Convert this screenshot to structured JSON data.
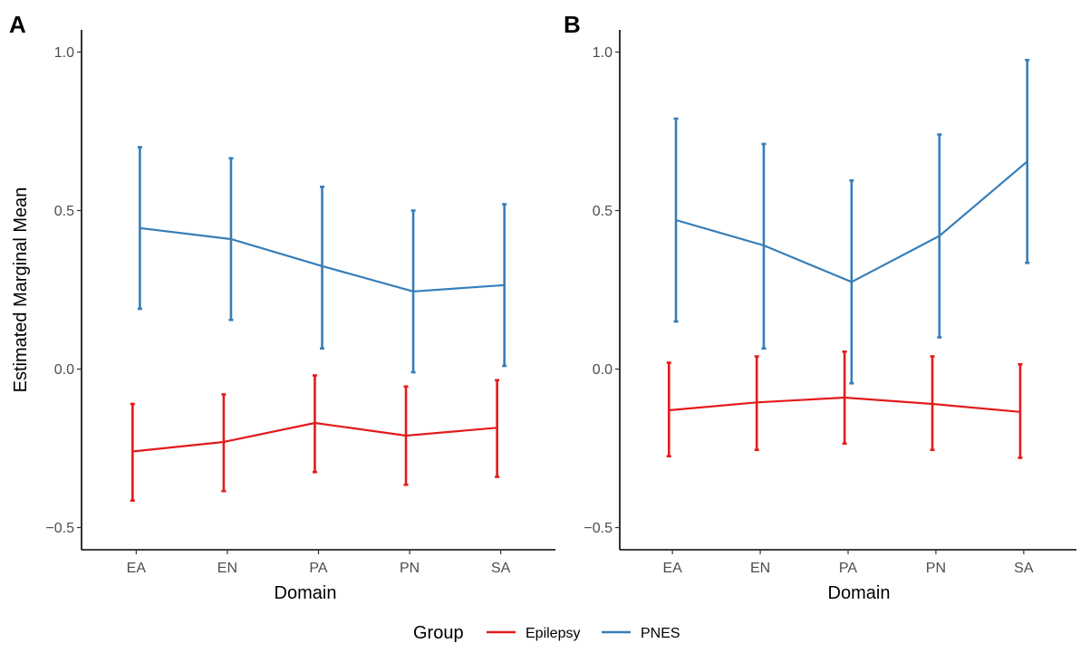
{
  "chart_data": [
    {
      "type": "line",
      "panel": "A",
      "categories": [
        "EA",
        "EN",
        "PA",
        "PN",
        "SA"
      ],
      "xlabel": "Domain",
      "ylabel": "Estimated Marginal Mean",
      "ylim": [
        -0.57,
        1.07
      ],
      "yticks": [
        -0.5,
        0.0,
        0.5,
        1.0
      ],
      "ytick_labels": [
        "−0.5",
        "0.0",
        "0.5",
        "1.0"
      ],
      "grid": false,
      "series": [
        {
          "name": "Epilepsy",
          "color": "#e41a1c",
          "values": [
            -0.26,
            -0.23,
            -0.17,
            -0.21,
            -0.185
          ],
          "lower": [
            -0.415,
            -0.385,
            -0.325,
            -0.365,
            -0.34
          ],
          "upper": [
            -0.11,
            -0.08,
            -0.02,
            -0.055,
            -0.035
          ]
        },
        {
          "name": "PNES",
          "color": "#377eb8",
          "values": [
            0.445,
            0.41,
            0.325,
            0.245,
            0.265
          ],
          "lower": [
            0.19,
            0.155,
            0.065,
            -0.01,
            0.01
          ],
          "upper": [
            0.7,
            0.665,
            0.575,
            0.5,
            0.52
          ]
        }
      ]
    },
    {
      "type": "line",
      "panel": "B",
      "categories": [
        "EA",
        "EN",
        "PA",
        "PN",
        "SA"
      ],
      "xlabel": "Domain",
      "ylabel": "",
      "ylim": [
        -0.57,
        1.07
      ],
      "yticks": [
        -0.5,
        0.0,
        0.5,
        1.0
      ],
      "ytick_labels": [
        "−0.5",
        "0.0",
        "0.5",
        "1.0"
      ],
      "grid": false,
      "series": [
        {
          "name": "Epilepsy",
          "color": "#e41a1c",
          "values": [
            -0.13,
            -0.105,
            -0.09,
            -0.11,
            -0.135
          ],
          "lower": [
            -0.275,
            -0.255,
            -0.235,
            -0.255,
            -0.28
          ],
          "upper": [
            0.02,
            0.04,
            0.055,
            0.04,
            0.015
          ]
        },
        {
          "name": "PNES",
          "color": "#377eb8",
          "values": [
            0.47,
            0.39,
            0.275,
            0.42,
            0.655
          ],
          "lower": [
            0.15,
            0.065,
            -0.045,
            0.1,
            0.335
          ],
          "upper": [
            0.79,
            0.71,
            0.595,
            0.74,
            0.975
          ]
        }
      ]
    }
  ],
  "legend": {
    "title": "Group",
    "placement": "bottom",
    "entries": [
      {
        "label": "Epilepsy",
        "color": "#e41a1c"
      },
      {
        "label": "PNES",
        "color": "#377eb8"
      }
    ]
  }
}
